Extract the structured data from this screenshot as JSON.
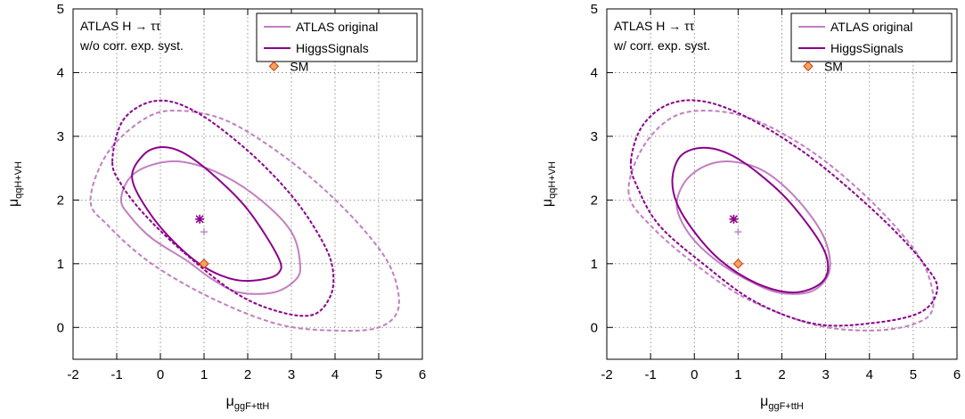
{
  "colors": {
    "atlas": "#c17fc1",
    "higgssignals": "#8b008b",
    "sm_fill": "#f4a460",
    "sm_stroke": "#cc3300",
    "grid": "#777777"
  },
  "legend": {
    "atlas_label": "ATLAS original",
    "hs_label": "HiggsSignals",
    "sm_label": "SM",
    "placement": "top-right"
  },
  "chart_data": [
    {
      "type": "scatter",
      "annotation_line1": "ATLAS H → ττ",
      "annotation_line2": "w/o corr. exp. syst.",
      "xlabel_main": "μ",
      "xlabel_sub": "ggF+ttH",
      "ylabel_main": "μ",
      "ylabel_sub": "qqH+VH",
      "xlim": [
        -2,
        6
      ],
      "ylim": [
        -0.5,
        5
      ],
      "xticks": [
        "-2",
        "-1",
        "0",
        "1",
        "2",
        "3",
        "4",
        "5",
        "6"
      ],
      "yticks": [
        "0",
        "1",
        "2",
        "3",
        "4",
        "5"
      ],
      "grid": true,
      "sm_point": [
        1,
        1
      ],
      "atlas_best_fit": [
        1.0,
        1.5
      ],
      "hs_best_fit": [
        0.9,
        1.7
      ],
      "series": [
        {
          "name": "ATLAS original",
          "level": "68%",
          "style": "solid",
          "x": [
            -0.9,
            -0.7,
            -0.2,
            0.5,
            1.4,
            2.3,
            3.0,
            3.2,
            3.1,
            2.6,
            1.8,
            1.2,
            0.6,
            -0.2,
            -0.7,
            -0.9
          ],
          "y": [
            2.0,
            2.35,
            2.55,
            2.6,
            2.4,
            2.0,
            1.5,
            1.0,
            0.75,
            0.55,
            0.55,
            0.75,
            1.05,
            1.4,
            1.75,
            2.0
          ]
        },
        {
          "name": "ATLAS original",
          "level": "95%",
          "style": "dashed",
          "x": [
            -1.6,
            -1.2,
            -0.3,
            0.5,
            1.5,
            2.6,
            3.7,
            4.7,
            5.3,
            5.45,
            5.0,
            4.0,
            2.7,
            1.2,
            -0.2,
            -1.2,
            -1.6
          ],
          "y": [
            2.0,
            2.75,
            3.3,
            3.4,
            3.25,
            2.8,
            2.2,
            1.5,
            0.9,
            0.3,
            0.0,
            -0.05,
            0.05,
            0.45,
            1.0,
            1.6,
            2.0
          ]
        },
        {
          "name": "HiggsSignals",
          "level": "68%",
          "style": "solid",
          "x": [
            -0.65,
            -0.4,
            0.0,
            0.5,
            1.2,
            2.0,
            2.7,
            2.7,
            2.3,
            1.7,
            1.0,
            0.3,
            -0.3,
            -0.65
          ],
          "y": [
            2.35,
            2.7,
            2.83,
            2.75,
            2.4,
            1.85,
            1.1,
            0.85,
            0.75,
            0.75,
            0.95,
            1.35,
            1.85,
            2.35
          ]
        },
        {
          "name": "HiggsSignals",
          "level": "95%",
          "style": "dashed",
          "x": [
            -1.1,
            -0.9,
            -0.4,
            0.2,
            0.9,
            1.7,
            2.5,
            3.2,
            3.75,
            3.95,
            3.9,
            3.5,
            2.7,
            1.7,
            0.5,
            -0.4,
            -0.9,
            -1.1
          ],
          "y": [
            2.6,
            3.2,
            3.5,
            3.55,
            3.35,
            2.95,
            2.45,
            1.9,
            1.3,
            0.9,
            0.5,
            0.2,
            0.25,
            0.55,
            1.2,
            1.8,
            2.25,
            2.6
          ]
        }
      ]
    },
    {
      "type": "scatter",
      "annotation_line1": "ATLAS H → ττ",
      "annotation_line2": "w/ corr. exp. syst.",
      "xlabel_main": "μ",
      "xlabel_sub": "ggF+ttH",
      "ylabel_main": "μ",
      "ylabel_sub": "qqH+VH",
      "xlim": [
        -2,
        6
      ],
      "ylim": [
        -0.5,
        5
      ],
      "xticks": [
        "-2",
        "-1",
        "0",
        "1",
        "2",
        "3",
        "4",
        "5",
        "6"
      ],
      "yticks": [
        "0",
        "1",
        "2",
        "3",
        "4",
        "5"
      ],
      "grid": true,
      "sm_point": [
        1,
        1
      ],
      "atlas_best_fit": [
        1.0,
        1.5
      ],
      "hs_best_fit": [
        0.9,
        1.7
      ],
      "series": [
        {
          "name": "ATLAS original",
          "level": "68%",
          "style": "solid",
          "x": [
            -0.4,
            -0.2,
            0.3,
            0.9,
            1.6,
            2.3,
            2.9,
            3.1,
            3.0,
            2.6,
            1.9,
            1.2,
            0.5,
            -0.1,
            -0.4
          ],
          "y": [
            1.9,
            2.3,
            2.55,
            2.6,
            2.45,
            2.05,
            1.5,
            1.05,
            0.75,
            0.55,
            0.55,
            0.75,
            1.05,
            1.45,
            1.9
          ]
        },
        {
          "name": "ATLAS original",
          "level": "95%",
          "style": "dashed",
          "x": [
            -1.5,
            -1.2,
            -0.5,
            0.4,
            1.4,
            2.6,
            3.7,
            4.7,
            5.3,
            5.45,
            5.0,
            4.0,
            2.7,
            1.2,
            0.0,
            -1.0,
            -1.5
          ],
          "y": [
            2.1,
            2.8,
            3.3,
            3.4,
            3.25,
            2.8,
            2.2,
            1.5,
            0.9,
            0.3,
            0.05,
            -0.05,
            0.05,
            0.45,
            1.0,
            1.6,
            2.1
          ]
        },
        {
          "name": "HiggsSignals",
          "level": "68%",
          "style": "solid",
          "x": [
            -0.5,
            -0.3,
            0.2,
            0.8,
            1.5,
            2.2,
            2.9,
            3.05,
            2.8,
            2.2,
            1.4,
            0.6,
            0.0,
            -0.4,
            -0.5
          ],
          "y": [
            2.35,
            2.7,
            2.82,
            2.72,
            2.4,
            1.95,
            1.3,
            0.9,
            0.65,
            0.55,
            0.7,
            1.05,
            1.5,
            1.95,
            2.35
          ]
        },
        {
          "name": "HiggsSignals",
          "level": "95%",
          "style": "dashed",
          "x": [
            -1.45,
            -1.2,
            -0.6,
            0.2,
            1.2,
            2.4,
            3.5,
            4.6,
            5.3,
            5.55,
            5.2,
            4.2,
            2.8,
            1.4,
            0.2,
            -0.8,
            -1.3,
            -1.45
          ],
          "y": [
            2.6,
            3.15,
            3.5,
            3.55,
            3.3,
            2.8,
            2.2,
            1.5,
            0.95,
            0.6,
            0.25,
            0.08,
            0.05,
            0.4,
            1.0,
            1.6,
            2.2,
            2.6
          ]
        }
      ]
    }
  ]
}
